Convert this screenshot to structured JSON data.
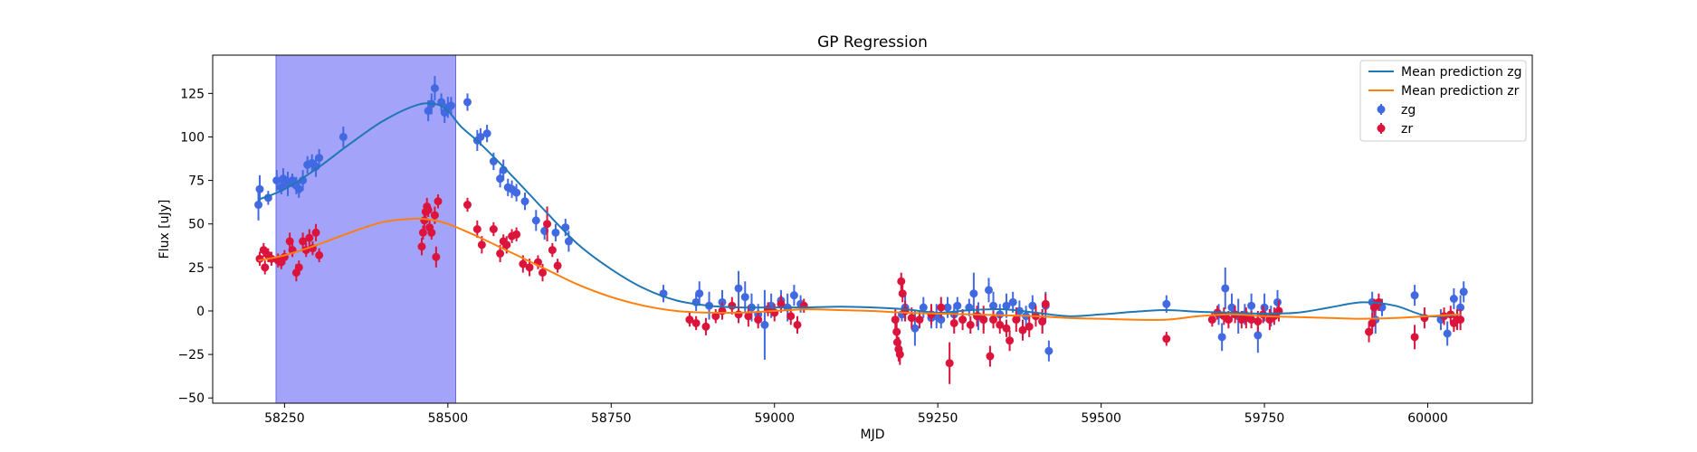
{
  "chart_data": {
    "type": "scatter",
    "title": "GP Regression",
    "xlabel": "MJD",
    "ylabel": "Flux [uJy]",
    "xlim": [
      58140,
      60160
    ],
    "ylim": [
      -53,
      147
    ],
    "xticks": [
      58250,
      58500,
      58750,
      59000,
      59250,
      59500,
      59750,
      60000
    ],
    "yticks": [
      -50,
      -25,
      0,
      25,
      50,
      75,
      100,
      125
    ],
    "grid": false,
    "legend_position": "top-right",
    "shaded_region": {
      "x_start": 58237,
      "x_end": 58512,
      "color": "#a3a3fa"
    },
    "colors": {
      "zg_points": "#4169e1",
      "zr_points": "#dc143c",
      "zg_line": "#1f77b4",
      "zr_line": "#ff7f0e"
    },
    "legend": [
      "Mean prediction zg",
      "Mean prediction zr",
      "zg",
      "zr"
    ],
    "lines": [
      {
        "name": "Mean prediction zg",
        "color": "#1f77b4",
        "x": [
          58210,
          58250,
          58300,
          58350,
          58400,
          58450,
          58480,
          58500,
          58520,
          58550,
          58600,
          58650,
          58700,
          58750,
          58800,
          58850,
          58900,
          58950,
          59000,
          59050,
          59100,
          59150,
          59200,
          59250,
          59300,
          59350,
          59400,
          59450,
          59500,
          59550,
          59600,
          59650,
          59700,
          59750,
          59800,
          59850,
          59900,
          59950,
          60000,
          60050
        ],
        "y": [
          64,
          70,
          82,
          96,
          109,
          118,
          119,
          115,
          106,
          96,
          77,
          57,
          38,
          24,
          13,
          6,
          3,
          2,
          2,
          2,
          2.5,
          2,
          1,
          -1,
          0.5,
          1,
          -1,
          -3,
          -2,
          -0.5,
          0.5,
          -0.5,
          -1,
          -1.5,
          -1,
          2,
          5,
          3,
          -3,
          -2
        ]
      },
      {
        "name": "Mean prediction zr",
        "color": "#ff7f0e",
        "x": [
          58210,
          58250,
          58300,
          58350,
          58400,
          58450,
          58480,
          58500,
          58520,
          58550,
          58600,
          58650,
          58700,
          58750,
          58800,
          58850,
          58900,
          58950,
          59000,
          59050,
          59100,
          59150,
          59200,
          59250,
          59300,
          59350,
          59400,
          59450,
          59500,
          59550,
          59600,
          59650,
          59700,
          59750,
          59800,
          59850,
          59900,
          59950,
          60000,
          60050
        ],
        "y": [
          29,
          32,
          38,
          45,
          51,
          53,
          52,
          50,
          47,
          42,
          33,
          24,
          15,
          8,
          3,
          0,
          -1,
          -1,
          0,
          1,
          0.5,
          0,
          -1,
          -1.5,
          -2,
          -2.5,
          -3,
          -4,
          -4.5,
          -5,
          -5,
          -3,
          -2,
          -3,
          -3.5,
          -4,
          -4.5,
          -4,
          -3,
          -2
        ]
      }
    ],
    "series": [
      {
        "name": "zg",
        "color": "#4169e1",
        "x": [
          58210,
          58212,
          58225,
          58238,
          58245,
          58248,
          58255,
          58262,
          58268,
          58272,
          58278,
          58285,
          58292,
          58298,
          58303,
          58340,
          58470,
          58475,
          58480,
          58490,
          58495,
          58500,
          58505,
          58530,
          58545,
          58550,
          58560,
          58570,
          58580,
          58585,
          58592,
          58598,
          58605,
          58618,
          58635,
          58648,
          58665,
          58680,
          58685,
          58830,
          58880,
          58885,
          58900,
          58920,
          58945,
          58955,
          58965,
          58975,
          58985,
          58995,
          59010,
          59020,
          59030,
          59040,
          59195,
          59200,
          59215,
          59228,
          59240,
          59248,
          59255,
          59265,
          59275,
          59280,
          59298,
          59305,
          59312,
          59320,
          59328,
          59335,
          59345,
          59355,
          59365,
          59375,
          59385,
          59395,
          59410,
          59415,
          59420,
          59600,
          59680,
          59685,
          59690,
          59700,
          59710,
          59720,
          59730,
          59740,
          59750,
          59760,
          59770,
          59915,
          59920,
          59930,
          59980,
          60020,
          60030,
          60040,
          60050,
          60055
        ],
        "y": [
          61,
          70,
          65,
          75,
          71,
          76,
          73,
          75,
          72,
          70,
          75,
          84,
          85,
          83,
          88,
          100,
          115,
          119,
          128,
          120,
          114,
          117,
          118,
          120,
          98,
          100,
          102,
          86,
          76,
          81,
          71,
          70,
          68,
          63,
          52,
          46,
          45,
          48,
          40,
          10,
          5,
          10,
          3,
          5,
          13,
          8,
          2,
          -2,
          -8,
          3,
          6,
          2,
          9,
          4,
          -2,
          2,
          -10,
          2,
          -4,
          -3,
          -5,
          2,
          -2,
          3,
          2,
          10,
          -3,
          -5,
          12,
          3,
          -2,
          3,
          5,
          0,
          -3,
          3,
          -6,
          3,
          -23,
          4,
          -2,
          -15,
          13,
          2,
          -3,
          -2,
          3,
          -14,
          2,
          -3,
          5,
          5,
          -5,
          2,
          9,
          -5,
          -13,
          7,
          2,
          11
        ],
        "yerr": [
          9,
          8,
          4,
          6,
          4,
          6,
          7,
          4,
          5,
          5,
          6,
          5,
          5,
          6,
          5,
          6,
          6,
          6,
          7,
          5,
          6,
          6,
          5,
          5,
          6,
          5,
          5,
          5,
          5,
          6,
          5,
          5,
          5,
          5,
          6,
          5,
          5,
          5,
          6,
          5,
          5,
          7,
          8,
          7,
          10,
          9,
          8,
          6,
          20,
          7,
          6,
          8,
          6,
          5,
          4,
          8,
          10,
          6,
          6,
          7,
          5,
          6,
          6,
          5,
          5,
          12,
          8,
          6,
          7,
          8,
          6,
          7,
          6,
          6,
          6,
          6,
          7,
          8,
          6,
          5,
          6,
          8,
          12,
          8,
          10,
          6,
          7,
          10,
          8,
          6,
          7,
          6,
          8,
          5,
          6,
          6,
          7,
          6,
          7,
          6
        ]
      },
      {
        "name": "zr",
        "color": "#dc143c",
        "x": [
          58212,
          58218,
          58220,
          58225,
          58230,
          58240,
          58245,
          58250,
          58258,
          58262,
          58268,
          58272,
          58278,
          58283,
          58288,
          58293,
          58298,
          58303,
          58460,
          58462,
          58464,
          58466,
          58468,
          58470,
          58472,
          58475,
          58480,
          58482,
          58485,
          58530,
          58545,
          58552,
          58570,
          58580,
          58585,
          58590,
          58598,
          58605,
          58615,
          58625,
          58638,
          58645,
          58652,
          58660,
          58668,
          58870,
          58880,
          58895,
          58910,
          58920,
          58935,
          58945,
          58960,
          58975,
          58990,
          59000,
          59010,
          59025,
          59035,
          59045,
          59185,
          59187,
          59188,
          59190,
          59192,
          59194,
          59196,
          59200,
          59210,
          59222,
          59240,
          59255,
          59268,
          59275,
          59288,
          59300,
          59310,
          59320,
          59330,
          59335,
          59345,
          59355,
          59360,
          59370,
          59380,
          59390,
          59400,
          59410,
          59415,
          59600,
          59670,
          59678,
          59688,
          59695,
          59705,
          59715,
          59722,
          59730,
          59740,
          59748,
          59758,
          59765,
          59772,
          59910,
          59915,
          59918,
          59925,
          59980,
          59995,
          60025,
          60035,
          60040,
          60045,
          60050
        ],
        "y": [
          30,
          35,
          25,
          32,
          30,
          29,
          28,
          31,
          40,
          35,
          22,
          25,
          40,
          35,
          42,
          36,
          45,
          32,
          37,
          45,
          52,
          57,
          60,
          58,
          48,
          45,
          55,
          31,
          63,
          61,
          47,
          38,
          47,
          33,
          40,
          38,
          43,
          44,
          27,
          25,
          28,
          22,
          50,
          35,
          26,
          -5,
          -7,
          -9,
          -3,
          0,
          3,
          -2,
          -3,
          -5,
          1,
          -1,
          4,
          -3,
          -8,
          3,
          -5,
          -12,
          -18,
          -22,
          -25,
          17,
          10,
          0,
          -4,
          -5,
          -2,
          2,
          -30,
          -7,
          -5,
          -8,
          -3,
          -5,
          -26,
          -5,
          -8,
          -10,
          -17,
          -5,
          -11,
          -9,
          -3,
          -6,
          4,
          -16,
          -5,
          -1,
          -3,
          -5,
          -2,
          -5,
          -4,
          -5,
          -6,
          -2,
          -5,
          -3,
          0,
          -12,
          -7,
          2,
          5,
          -15,
          -4,
          -3,
          -2,
          -7,
          -5,
          -5
        ],
        "yerr": [
          4,
          4,
          4,
          4,
          4,
          4,
          4,
          4,
          5,
          4,
          5,
          4,
          5,
          4,
          5,
          4,
          5,
          4,
          5,
          4,
          5,
          4,
          5,
          4,
          5,
          4,
          5,
          6,
          4,
          4,
          5,
          5,
          4,
          5,
          4,
          5,
          4,
          4,
          5,
          5,
          4,
          5,
          10,
          4,
          4,
          4,
          4,
          5,
          4,
          5,
          5,
          5,
          6,
          5,
          4,
          5,
          5,
          5,
          5,
          4,
          6,
          6,
          8,
          7,
          6,
          5,
          5,
          6,
          6,
          5,
          6,
          6,
          12,
          6,
          6,
          5,
          6,
          8,
          6,
          5,
          5,
          5,
          6,
          7,
          6,
          6,
          6,
          7,
          6,
          4,
          4,
          4,
          5,
          5,
          5,
          5,
          6,
          5,
          6,
          5,
          6,
          5,
          6,
          6,
          6,
          5,
          5,
          7,
          6,
          5,
          5,
          5,
          6,
          6
        ]
      }
    ]
  }
}
